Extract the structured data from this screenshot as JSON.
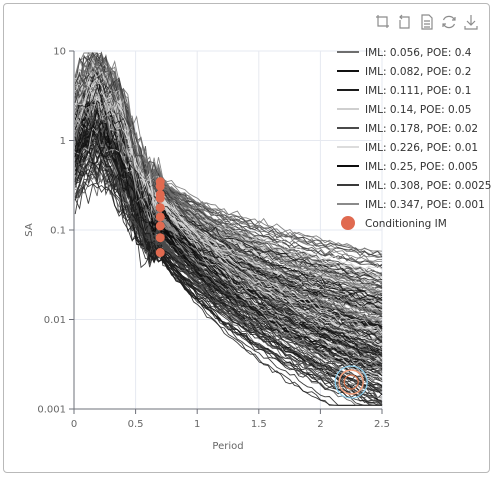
{
  "toolbox": [
    {
      "name": "zoom-icon",
      "title": "Zoom"
    },
    {
      "name": "zoom-reset-icon",
      "title": "Zoom Reset"
    },
    {
      "name": "data-view-icon",
      "title": "Data View"
    },
    {
      "name": "restore-icon",
      "title": "Restore"
    },
    {
      "name": "save-image-icon",
      "title": "Save as Image"
    }
  ],
  "chart_data": {
    "type": "line",
    "xlabel": "Period",
    "ylabel": "SA",
    "xlim": [
      0,
      2.5
    ],
    "ylim": [
      0.001,
      10
    ],
    "yscale": "log",
    "x_ticks": [
      "0",
      "0.5",
      "1",
      "1.5",
      "2",
      "2.5"
    ],
    "y_ticks": [
      "0.001",
      "0.01",
      "0.1",
      "1",
      "10"
    ],
    "grid": true,
    "legend_position": "top-right",
    "series": [
      {
        "name": "IML: 0.056, POE: 0.4",
        "color": "#6e6e6e"
      },
      {
        "name": "IML: 0.082, POE: 0.2",
        "color": "#111111"
      },
      {
        "name": "IML: 0.111, POE: 0.1",
        "color": "#1c1c1c"
      },
      {
        "name": "IML: 0.14, POE: 0.05",
        "color": "#cfcfcf"
      },
      {
        "name": "IML: 0.178, POE: 0.02",
        "color": "#4a4a4a"
      },
      {
        "name": "IML: 0.226, POE: 0.01",
        "color": "#dcdcdc"
      },
      {
        "name": "IML: 0.25, POE: 0.005",
        "color": "#0d0d0d"
      },
      {
        "name": "IML: 0.308, POE: 0.0025",
        "color": "#3a3a3a"
      },
      {
        "name": "IML: 0.347, POE: 0.001",
        "color": "#8a8a8a"
      }
    ],
    "conditioning_im": {
      "name": "Conditioning IM",
      "color": "#e06a50",
      "points": [
        {
          "x": 0.7,
          "y": 0.347
        },
        {
          "x": 0.7,
          "y": 0.308
        },
        {
          "x": 0.7,
          "y": 0.25
        },
        {
          "x": 0.7,
          "y": 0.226
        },
        {
          "x": 0.7,
          "y": 0.178
        },
        {
          "x": 0.7,
          "y": 0.14
        },
        {
          "x": 0.7,
          "y": 0.111
        },
        {
          "x": 0.7,
          "y": 0.082
        },
        {
          "x": 0.7,
          "y": 0.056
        }
      ]
    },
    "highlight_point": {
      "x": 2.25,
      "y": 0.002
    }
  }
}
